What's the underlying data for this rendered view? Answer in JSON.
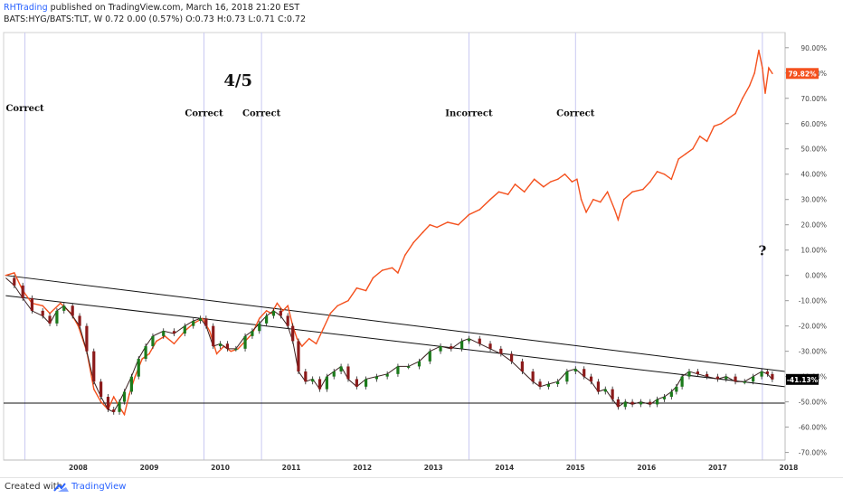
{
  "header": {
    "publisher": "RHTrading",
    "published_text": "published on TradingView.com, March 16, 2018 21:20 EST",
    "symbol_line": "BATS:HYG/BATS:TLT, W  0.72 0.00 (0.57%)  O:0.73 H:0.73 L:0.71 C:0.72"
  },
  "footer": {
    "created_with": "Created with",
    "brand": "TradingView"
  },
  "chart_data": {
    "type": "line",
    "y_axis": {
      "ticks": [
        90,
        80,
        70,
        60,
        50,
        40,
        30,
        20,
        10,
        0,
        -10,
        -20,
        -30,
        -40,
        -50,
        -60,
        -70
      ],
      "tick_labels": [
        "90.00%",
        "80.00%",
        "70.00%",
        "60.00%",
        "50.00%",
        "40.00%",
        "30.00%",
        "20.00%",
        "10.00%",
        "0.00%",
        "-10.00%",
        "-20.00%",
        "-30.00%",
        "-40.00%",
        "-50.00%",
        "-60.00%",
        "-70.00%"
      ],
      "ylim": [
        -73,
        96
      ],
      "side": "right"
    },
    "x_axis": {
      "tick_labels": [
        "2008",
        "2009",
        "2010",
        "2011",
        "2012",
        "2013",
        "2014",
        "2015",
        "2016",
        "2017",
        "2018"
      ],
      "xlim": [
        2007.45,
        2018.45
      ]
    },
    "price_labels": [
      {
        "text": "79.82%",
        "value": 79.82,
        "color": "#f4511e"
      },
      {
        "text": "-41.13%",
        "value": -41.13,
        "color": "#000000"
      }
    ],
    "series": [
      {
        "color": "#f4511e",
        "style": "line",
        "points": [
          [
            2007.48,
            0
          ],
          [
            2007.6,
            1
          ],
          [
            2007.72,
            -6
          ],
          [
            2007.85,
            -11
          ],
          [
            2008.0,
            -12
          ],
          [
            2008.1,
            -15
          ],
          [
            2008.25,
            -11
          ],
          [
            2008.4,
            -15
          ],
          [
            2008.5,
            -20
          ],
          [
            2008.62,
            -30
          ],
          [
            2008.72,
            -45
          ],
          [
            2008.82,
            -50
          ],
          [
            2008.92,
            -53
          ],
          [
            2009.0,
            -48
          ],
          [
            2009.08,
            -52
          ],
          [
            2009.15,
            -55
          ],
          [
            2009.22,
            -47
          ],
          [
            2009.3,
            -40
          ],
          [
            2009.4,
            -33
          ],
          [
            2009.5,
            -31
          ],
          [
            2009.6,
            -26
          ],
          [
            2009.72,
            -24
          ],
          [
            2009.85,
            -27
          ],
          [
            2010.0,
            -22
          ],
          [
            2010.12,
            -19
          ],
          [
            2010.25,
            -17
          ],
          [
            2010.35,
            -22
          ],
          [
            2010.45,
            -31
          ],
          [
            2010.55,
            -28
          ],
          [
            2010.65,
            -30
          ],
          [
            2010.75,
            -29
          ],
          [
            2010.85,
            -26
          ],
          [
            2010.95,
            -23
          ],
          [
            2011.05,
            -17
          ],
          [
            2011.15,
            -14
          ],
          [
            2011.22,
            -15
          ],
          [
            2011.3,
            -11
          ],
          [
            2011.38,
            -14
          ],
          [
            2011.45,
            -12
          ],
          [
            2011.52,
            -20
          ],
          [
            2011.58,
            -25
          ],
          [
            2011.65,
            -28
          ],
          [
            2011.75,
            -25
          ],
          [
            2011.85,
            -27
          ],
          [
            2011.95,
            -21
          ],
          [
            2012.05,
            -15
          ],
          [
            2012.15,
            -12
          ],
          [
            2012.3,
            -10
          ],
          [
            2012.42,
            -5
          ],
          [
            2012.55,
            -6
          ],
          [
            2012.65,
            -1
          ],
          [
            2012.78,
            2
          ],
          [
            2012.92,
            3
          ],
          [
            2013.0,
            1
          ],
          [
            2013.1,
            8
          ],
          [
            2013.22,
            13
          ],
          [
            2013.35,
            17
          ],
          [
            2013.45,
            20
          ],
          [
            2013.55,
            19
          ],
          [
            2013.7,
            21
          ],
          [
            2013.85,
            20
          ],
          [
            2014.0,
            24
          ],
          [
            2014.15,
            26
          ],
          [
            2014.3,
            30
          ],
          [
            2014.42,
            33
          ],
          [
            2014.55,
            32
          ],
          [
            2014.65,
            36
          ],
          [
            2014.78,
            33
          ],
          [
            2014.92,
            38
          ],
          [
            2015.05,
            35
          ],
          [
            2015.15,
            37
          ],
          [
            2015.25,
            38
          ],
          [
            2015.35,
            40
          ],
          [
            2015.45,
            37
          ],
          [
            2015.52,
            38
          ],
          [
            2015.58,
            30
          ],
          [
            2015.65,
            25
          ],
          [
            2015.75,
            30
          ],
          [
            2015.85,
            29
          ],
          [
            2015.95,
            33
          ],
          [
            2016.05,
            26
          ],
          [
            2016.1,
            22
          ],
          [
            2016.18,
            30
          ],
          [
            2016.3,
            33
          ],
          [
            2016.45,
            34
          ],
          [
            2016.55,
            37
          ],
          [
            2016.65,
            41
          ],
          [
            2016.75,
            40
          ],
          [
            2016.85,
            38
          ],
          [
            2016.95,
            46
          ],
          [
            2017.05,
            48
          ],
          [
            2017.15,
            50
          ],
          [
            2017.25,
            55
          ],
          [
            2017.35,
            53
          ],
          [
            2017.45,
            59
          ],
          [
            2017.55,
            60
          ],
          [
            2017.65,
            62
          ],
          [
            2017.75,
            64
          ],
          [
            2017.85,
            70
          ],
          [
            2017.95,
            75
          ],
          [
            2018.02,
            80
          ],
          [
            2018.08,
            89
          ],
          [
            2018.13,
            82
          ],
          [
            2018.17,
            72
          ],
          [
            2018.22,
            82
          ],
          [
            2018.27,
            79.82
          ]
        ]
      },
      {
        "color": "#000000",
        "style": "candles",
        "points": [
          [
            2007.48,
            -1
          ],
          [
            2007.6,
            -4
          ],
          [
            2007.72,
            -9
          ],
          [
            2007.85,
            -14
          ],
          [
            2008.0,
            -16
          ],
          [
            2008.1,
            -19
          ],
          [
            2008.2,
            -14
          ],
          [
            2008.3,
            -12
          ],
          [
            2008.42,
            -16
          ],
          [
            2008.52,
            -20
          ],
          [
            2008.62,
            -30
          ],
          [
            2008.72,
            -42
          ],
          [
            2008.82,
            -48
          ],
          [
            2008.92,
            -53
          ],
          [
            2009.0,
            -54
          ],
          [
            2009.08,
            -50
          ],
          [
            2009.15,
            -46
          ],
          [
            2009.25,
            -40
          ],
          [
            2009.35,
            -33
          ],
          [
            2009.45,
            -28
          ],
          [
            2009.55,
            -24
          ],
          [
            2009.7,
            -22
          ],
          [
            2009.85,
            -23
          ],
          [
            2010.0,
            -20
          ],
          [
            2010.12,
            -18
          ],
          [
            2010.22,
            -17
          ],
          [
            2010.3,
            -20
          ],
          [
            2010.4,
            -28
          ],
          [
            2010.5,
            -27
          ],
          [
            2010.6,
            -29
          ],
          [
            2010.72,
            -29
          ],
          [
            2010.85,
            -24
          ],
          [
            2010.95,
            -22
          ],
          [
            2011.05,
            -19
          ],
          [
            2011.15,
            -16
          ],
          [
            2011.25,
            -14
          ],
          [
            2011.35,
            -16
          ],
          [
            2011.45,
            -20
          ],
          [
            2011.52,
            -26
          ],
          [
            2011.6,
            -38
          ],
          [
            2011.7,
            -42
          ],
          [
            2011.8,
            -41
          ],
          [
            2011.9,
            -45
          ],
          [
            2012.0,
            -40
          ],
          [
            2012.1,
            -38
          ],
          [
            2012.2,
            -36
          ],
          [
            2012.3,
            -41
          ],
          [
            2012.42,
            -44
          ],
          [
            2012.55,
            -41
          ],
          [
            2012.7,
            -40
          ],
          [
            2012.85,
            -39
          ],
          [
            2013.0,
            -36
          ],
          [
            2013.15,
            -36
          ],
          [
            2013.3,
            -34
          ],
          [
            2013.45,
            -30
          ],
          [
            2013.6,
            -28
          ],
          [
            2013.75,
            -29
          ],
          [
            2013.9,
            -26
          ],
          [
            2014.0,
            -25
          ],
          [
            2014.15,
            -27
          ],
          [
            2014.3,
            -29
          ],
          [
            2014.45,
            -31
          ],
          [
            2014.6,
            -34
          ],
          [
            2014.75,
            -38
          ],
          [
            2014.9,
            -42
          ],
          [
            2015.0,
            -44
          ],
          [
            2015.12,
            -43
          ],
          [
            2015.25,
            -42
          ],
          [
            2015.38,
            -38
          ],
          [
            2015.5,
            -37
          ],
          [
            2015.62,
            -40
          ],
          [
            2015.72,
            -42
          ],
          [
            2015.82,
            -46
          ],
          [
            2015.92,
            -45
          ],
          [
            2016.02,
            -49
          ],
          [
            2016.1,
            -52
          ],
          [
            2016.2,
            -50
          ],
          [
            2016.3,
            -51
          ],
          [
            2016.42,
            -50
          ],
          [
            2016.55,
            -51
          ],
          [
            2016.65,
            -49
          ],
          [
            2016.75,
            -48
          ],
          [
            2016.85,
            -46
          ],
          [
            2016.92,
            -44
          ],
          [
            2017.0,
            -40
          ],
          [
            2017.1,
            -38
          ],
          [
            2017.22,
            -39
          ],
          [
            2017.35,
            -40
          ],
          [
            2017.5,
            -41
          ],
          [
            2017.62,
            -40
          ],
          [
            2017.75,
            -42
          ],
          [
            2017.88,
            -42
          ],
          [
            2018.0,
            -40
          ],
          [
            2018.12,
            -38
          ],
          [
            2018.2,
            -39
          ],
          [
            2018.27,
            -41.13
          ]
        ]
      }
    ],
    "trendlines": [
      {
        "from": [
          2007.48,
          0
        ],
        "to": [
          2018.45,
          -38
        ]
      },
      {
        "from": [
          2007.48,
          -8
        ],
        "to": [
          2018.45,
          -44
        ]
      }
    ],
    "horizontal_lines": [
      -50.5
    ],
    "vertical_markers": [
      2007.75,
      2010.27,
      2011.08,
      2014.0,
      2015.5,
      2018.13
    ],
    "annotations": [
      {
        "text": "4/5",
        "x": 2010.75,
        "y": 75,
        "size": "large"
      },
      {
        "text": "Correct",
        "x": 2007.75,
        "y": 65
      },
      {
        "text": "Correct",
        "x": 2010.27,
        "y": 63
      },
      {
        "text": "Correct",
        "x": 2011.08,
        "y": 63
      },
      {
        "text": "Incorrect",
        "x": 2014.0,
        "y": 63
      },
      {
        "text": "Correct",
        "x": 2015.5,
        "y": 63
      },
      {
        "text": "?",
        "x": 2018.13,
        "y": 8,
        "size": "medium"
      }
    ]
  }
}
